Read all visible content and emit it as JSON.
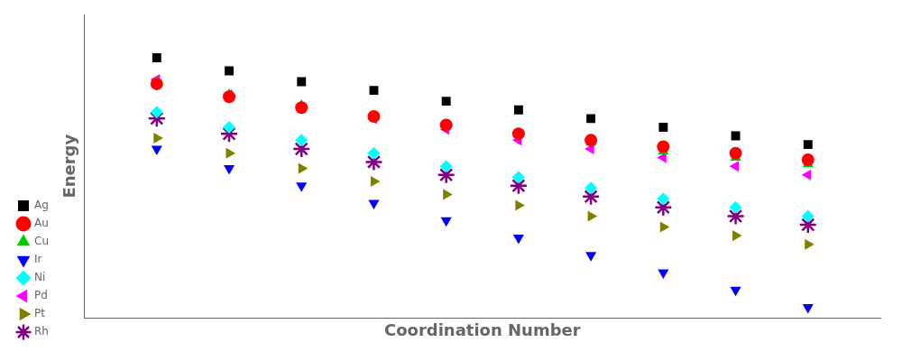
{
  "chart_data": {
    "type": "scatter",
    "xlabel": "Coordination Number",
    "ylabel": "Energy",
    "xlim": [
      0,
      11
    ],
    "ylim": [
      -2,
      12
    ],
    "tick_labels": false,
    "grid": false,
    "legend": "lower left",
    "series": [
      {
        "name": "Ag",
        "color": "#000000",
        "marker": "square",
        "x": [
          1,
          2,
          3,
          4,
          5,
          6,
          7,
          8,
          9,
          10
        ],
        "values": [
          10.0,
          9.4,
          8.9,
          8.5,
          8.0,
          7.6,
          7.2,
          6.8,
          6.4,
          6.0
        ]
      },
      {
        "name": "Au",
        "color": "#ff0000",
        "marker": "circle",
        "x": [
          1,
          2,
          3,
          4,
          5,
          6,
          7,
          8,
          9,
          10
        ],
        "values": [
          8.8,
          8.2,
          7.7,
          7.3,
          6.9,
          6.5,
          6.2,
          5.9,
          5.6,
          5.3
        ]
      },
      {
        "name": "Cu",
        "color": "#00cc00",
        "marker": "triangle-up",
        "x": [
          1,
          2,
          3,
          4,
          5,
          6,
          7,
          8,
          9,
          10
        ],
        "values": [
          8.9,
          8.3,
          7.8,
          7.3,
          6.9,
          6.5,
          6.1,
          5.7,
          5.4,
          5.1
        ]
      },
      {
        "name": "Ir",
        "color": "#0000ff",
        "marker": "triangle-down",
        "x": [
          1,
          2,
          3,
          4,
          5,
          6,
          7,
          8,
          9,
          10
        ],
        "values": [
          5.8,
          4.9,
          4.1,
          3.3,
          2.5,
          1.7,
          0.9,
          0.1,
          -0.7,
          -1.5
        ]
      },
      {
        "name": "Ni",
        "color": "#00ffff",
        "marker": "diamond",
        "x": [
          1,
          2,
          3,
          4,
          5,
          6,
          7,
          8,
          9,
          10
        ],
        "values": [
          7.5,
          6.8,
          6.2,
          5.6,
          5.0,
          4.5,
          4.0,
          3.5,
          3.1,
          2.7
        ]
      },
      {
        "name": "Pd",
        "color": "#ff00ff",
        "marker": "triangle-left",
        "x": [
          1,
          2,
          3,
          4,
          5,
          6,
          7,
          8,
          9,
          10
        ],
        "values": [
          9.0,
          8.3,
          7.7,
          7.2,
          6.7,
          6.2,
          5.8,
          5.4,
          5.0,
          4.6
        ]
      },
      {
        "name": "Pt",
        "color": "#808000",
        "marker": "triangle-right",
        "x": [
          1,
          2,
          3,
          4,
          5,
          6,
          7,
          8,
          9,
          10
        ],
        "values": [
          6.3,
          5.6,
          4.9,
          4.3,
          3.7,
          3.2,
          2.7,
          2.2,
          1.8,
          1.4
        ]
      },
      {
        "name": "Rh",
        "color": "#800080",
        "marker": "star",
        "x": [
          1,
          2,
          3,
          4,
          5,
          6,
          7,
          8,
          9,
          10
        ],
        "values": [
          7.2,
          6.5,
          5.8,
          5.2,
          4.6,
          4.1,
          3.6,
          3.1,
          2.7,
          2.3
        ]
      }
    ]
  }
}
